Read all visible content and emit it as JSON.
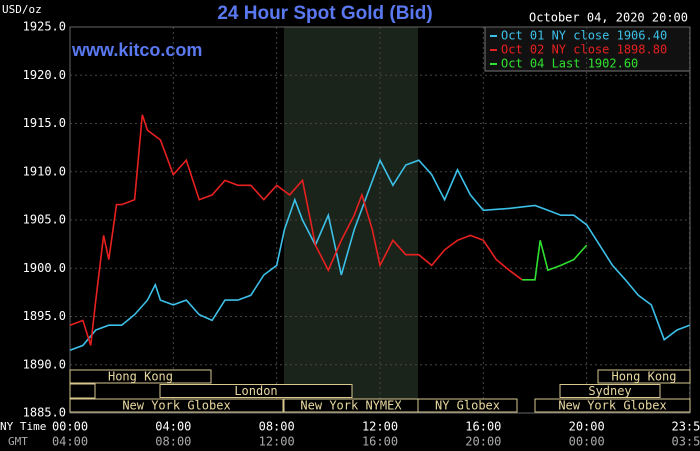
{
  "chart_data": {
    "type": "line",
    "title": "24 Hour Spot Gold (Bid)",
    "unit_label": "USD/oz",
    "site": "www.kitco.com",
    "timestamp": "October 04, 2020 20:00",
    "row_labels": [
      "NY Time",
      "GMT"
    ],
    "xlim": [
      0,
      24
    ],
    "ylim": [
      1885,
      1925
    ],
    "yticks": [
      {
        "value": 1885,
        "label": "1885.0"
      },
      {
        "value": 1890,
        "label": "1890.0"
      },
      {
        "value": 1895,
        "label": "1895.0"
      },
      {
        "value": 1900,
        "label": "1900.0"
      },
      {
        "value": 1905,
        "label": "1905.0"
      },
      {
        "value": 1910,
        "label": "1910.0"
      },
      {
        "value": 1915,
        "label": "1915.0"
      },
      {
        "value": 1920,
        "label": "1920.0"
      },
      {
        "value": 1925,
        "label": "1925.0"
      }
    ],
    "xticks": [
      {
        "value": 0,
        "label": "00:00"
      },
      {
        "value": 4,
        "label": "04:00"
      },
      {
        "value": 8,
        "label": "08:00"
      },
      {
        "value": 12,
        "label": "12:00"
      },
      {
        "value": 16,
        "label": "16:00"
      },
      {
        "value": 20,
        "label": "20:00"
      },
      {
        "value": 23.983,
        "label": "23:59"
      }
    ],
    "xticks_gmt": [
      "04:00",
      "08:00",
      "12:00",
      "16:00",
      "20:00",
      "00:00",
      "03:59"
    ],
    "grid": true,
    "sessions": [
      "Hong Kong",
      "London",
      "New York Globex",
      "New York NYMEX",
      "NY Globex",
      "Sydney",
      "Hong Kong",
      "New York Globex"
    ],
    "series": [
      {
        "name": "Oct 01 NY close 1906.40",
        "color": "#3cc0e8",
        "x": [
          0,
          0.5,
          1,
          1.5,
          2,
          2.5,
          3,
          3.3,
          3.5,
          4,
          4.5,
          5,
          5.5,
          6,
          6.5,
          7,
          7.5,
          8,
          8.3,
          8.7,
          9,
          9.5,
          10,
          10.5,
          11,
          11.5,
          12,
          12.5,
          13,
          13.5,
          14,
          14.5,
          15,
          15.5,
          16,
          17,
          18,
          18.5,
          19,
          19.5,
          20,
          20.5,
          21,
          21.5,
          22,
          22.5,
          23,
          23.5,
          23.983
        ],
        "values": [
          1891.5,
          1892.0,
          1893.6,
          1894.1,
          1894.1,
          1895.2,
          1896.7,
          1898.3,
          1896.7,
          1896.2,
          1896.7,
          1895.2,
          1894.6,
          1896.7,
          1896.7,
          1897.2,
          1899.3,
          1900.3,
          1904.0,
          1907.1,
          1905.0,
          1902.4,
          1905.5,
          1899.3,
          1904.0,
          1907.6,
          1911.2,
          1908.6,
          1910.7,
          1911.2,
          1909.7,
          1907.1,
          1910.2,
          1907.6,
          1906.0,
          1906.2,
          1906.5,
          1906.0,
          1905.5,
          1905.5,
          1904.5,
          1902.4,
          1900.3,
          1898.8,
          1897.2,
          1896.2,
          1892.6,
          1893.6,
          1894.1
        ]
      },
      {
        "name": "Oct 02 NY close 1898.80",
        "color": "#e82020",
        "x": [
          0,
          0.5,
          0.8,
          1,
          1.3,
          1.5,
          1.8,
          2,
          2.5,
          2.8,
          3,
          3.5,
          4,
          4.5,
          5,
          5.5,
          6,
          6.5,
          7,
          7.5,
          8,
          8.5,
          9,
          9.5,
          10,
          10.5,
          11,
          11.3,
          11.7,
          12,
          12.5,
          13,
          13.5,
          14,
          14.5,
          15,
          15.5,
          16,
          16.5,
          17,
          17.5
        ],
        "values": [
          1894.1,
          1894.6,
          1892.0,
          1896.7,
          1903.4,
          1900.9,
          1906.6,
          1906.6,
          1907.1,
          1915.9,
          1914.3,
          1913.3,
          1909.7,
          1911.2,
          1907.1,
          1907.6,
          1909.1,
          1908.6,
          1908.6,
          1907.1,
          1908.6,
          1907.6,
          1909.1,
          1902.4,
          1899.8,
          1902.9,
          1905.5,
          1907.6,
          1904.0,
          1900.3,
          1902.9,
          1901.4,
          1901.4,
          1900.3,
          1901.9,
          1902.9,
          1903.4,
          1902.9,
          1900.9,
          1899.8,
          1898.8
        ]
      },
      {
        "name": "Oct 04 Last 1902.60",
        "color": "#30e030",
        "x": [
          17.5,
          18,
          18.2,
          18.5,
          19,
          19.5,
          20
        ],
        "values": [
          1898.8,
          1898.8,
          1902.9,
          1899.8,
          1900.3,
          1900.9,
          1902.4
        ]
      }
    ]
  }
}
